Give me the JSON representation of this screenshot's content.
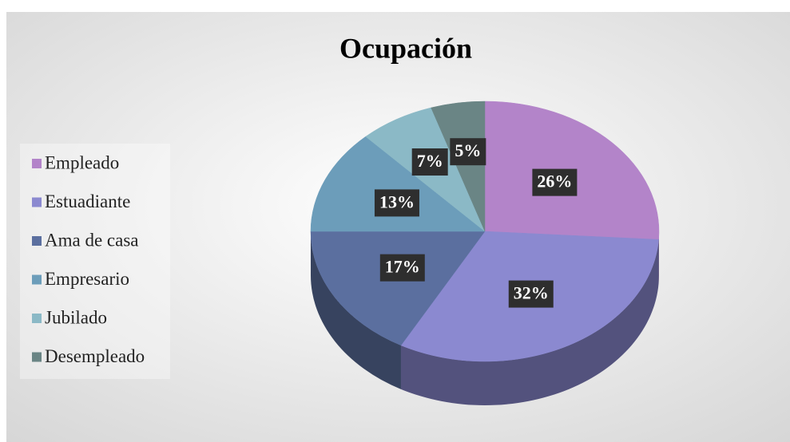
{
  "chart_data": {
    "type": "pie",
    "title": "Ocupación",
    "categories": [
      "Empleado",
      "Estuadiante",
      "Ama de casa",
      "Empresario",
      "Jubilado",
      "Desempleado"
    ],
    "values": [
      26,
      32,
      17,
      13,
      7,
      5
    ],
    "value_labels": [
      "26%",
      "32%",
      "17%",
      "13%",
      "7%",
      "5%"
    ],
    "colors": [
      "#b384c9",
      "#8b89d0",
      "#5b6f9f",
      "#6c9dba",
      "#8bb9c6",
      "#6a8585"
    ],
    "legend": "left"
  }
}
